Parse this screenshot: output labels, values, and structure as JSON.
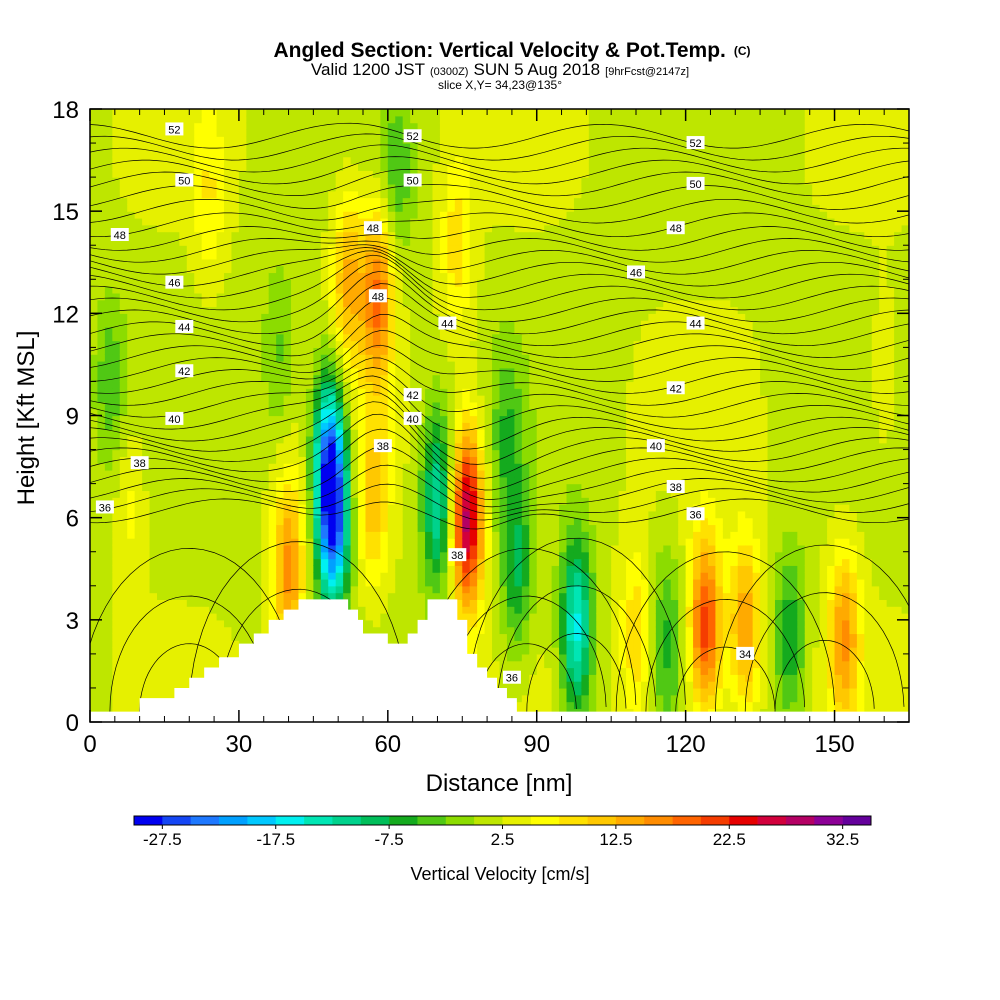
{
  "title": {
    "main": "Angled Section: Vertical Velocity & Pot.Temp.",
    "unit_tag": "(C)",
    "valid_a": "Valid 1200 JST",
    "valid_b": "(0300Z)",
    "valid_c": "SUN 5 Aug 2018",
    "valid_d": "[9hrFcst@2147z]",
    "slice": "slice X,Y= 34,23@135°"
  },
  "chart_data": {
    "type": "heatmap",
    "xlabel": "Distance [nm]",
    "ylabel": "Height [Kft MSL]",
    "xlim": [
      0,
      165
    ],
    "ylim": [
      0,
      18
    ],
    "x_ticks": [
      0,
      30,
      60,
      90,
      120,
      150
    ],
    "y_ticks": [
      0,
      3,
      6,
      9,
      12,
      15,
      18
    ],
    "x_tick_labels": [
      "0",
      "30",
      "60",
      "90",
      "120",
      "150"
    ],
    "y_tick_labels": [
      "0",
      "3",
      "6",
      "9",
      "12",
      "15",
      "18"
    ],
    "colorbar": {
      "label": "Vertical Velocity [cm/s]",
      "tick_labels": [
        "-27.5",
        "-17.5",
        "-7.5",
        "2.5",
        "12.5",
        "22.5",
        "32.5"
      ],
      "levels": [
        -30,
        -27.5,
        -25,
        -22.5,
        -20,
        -17.5,
        -15,
        -12.5,
        -10,
        -7.5,
        -5,
        -2.5,
        0,
        2.5,
        5,
        7.5,
        10,
        12.5,
        15,
        17.5,
        20,
        22.5,
        25,
        27.5,
        30,
        32.5,
        35
      ],
      "colors": [
        "#0000f0",
        "#1446f4",
        "#1e78ff",
        "#00a0ff",
        "#00c8ff",
        "#00f0f0",
        "#00e6b4",
        "#00d28c",
        "#00be5a",
        "#14aa1e",
        "#50c814",
        "#8cdc00",
        "#bee600",
        "#e6f000",
        "#ffff00",
        "#ffe100",
        "#ffc800",
        "#ffaa00",
        "#ff8c00",
        "#ff6400",
        "#f53c00",
        "#e60000",
        "#d2003c",
        "#b40064",
        "#8c0096",
        "#64009b"
      ]
    },
    "vertical_velocity_features": [
      {
        "x": 4,
        "z": 10.0,
        "w": -6
      },
      {
        "x": 8,
        "z": 6.5,
        "w": 4
      },
      {
        "x": 24,
        "z": 15.5,
        "w": 5
      },
      {
        "x": 38,
        "z": 11.0,
        "w": -5
      },
      {
        "x": 40,
        "z": 4.5,
        "w": 14
      },
      {
        "x": 49,
        "z": 6.0,
        "w": -27
      },
      {
        "x": 48,
        "z": 8.0,
        "w": -18
      },
      {
        "x": 52,
        "z": 13.0,
        "w": 11
      },
      {
        "x": 58,
        "z": 12.5,
        "w": 16
      },
      {
        "x": 57,
        "z": 6.5,
        "w": 9
      },
      {
        "x": 62,
        "z": 16.0,
        "w": -6
      },
      {
        "x": 70,
        "z": 6.5,
        "w": -15
      },
      {
        "x": 76,
        "z": 6.0,
        "w": 27
      },
      {
        "x": 74,
        "z": 14.0,
        "w": 7
      },
      {
        "x": 84,
        "z": 8.5,
        "w": -6
      },
      {
        "x": 86,
        "z": 4.5,
        "w": -10
      },
      {
        "x": 98,
        "z": 2.8,
        "w": -18
      },
      {
        "x": 110,
        "z": 2.5,
        "w": 8
      },
      {
        "x": 116,
        "z": 2.5,
        "w": -7
      },
      {
        "x": 124,
        "z": 2.8,
        "w": 20
      },
      {
        "x": 132,
        "z": 2.8,
        "w": 13
      },
      {
        "x": 141,
        "z": 2.5,
        "w": -9
      },
      {
        "x": 152,
        "z": 2.5,
        "w": 13
      },
      {
        "x": 160,
        "z": 10.0,
        "w": 3
      }
    ],
    "potential_temperature_contours": {
      "levels": [
        34,
        36,
        38,
        40,
        42,
        44,
        46,
        48,
        50,
        52
      ],
      "labels": [
        {
          "text": "52",
          "x": 17,
          "z": 17.4
        },
        {
          "text": "52",
          "x": 65,
          "z": 17.2
        },
        {
          "text": "52",
          "x": 122,
          "z": 17.0
        },
        {
          "text": "50",
          "x": 19,
          "z": 15.9
        },
        {
          "text": "50",
          "x": 65,
          "z": 15.9
        },
        {
          "text": "50",
          "x": 122,
          "z": 15.8
        },
        {
          "text": "48",
          "x": 6,
          "z": 14.3
        },
        {
          "text": "48",
          "x": 57,
          "z": 14.5
        },
        {
          "text": "48",
          "x": 118,
          "z": 14.5
        },
        {
          "text": "48",
          "x": 58,
          "z": 12.5
        },
        {
          "text": "46",
          "x": 17,
          "z": 12.9
        },
        {
          "text": "46",
          "x": 110,
          "z": 13.2
        },
        {
          "text": "44",
          "x": 19,
          "z": 11.6
        },
        {
          "text": "44",
          "x": 72,
          "z": 11.7
        },
        {
          "text": "44",
          "x": 122,
          "z": 11.7
        },
        {
          "text": "42",
          "x": 19,
          "z": 10.3
        },
        {
          "text": "42",
          "x": 65,
          "z": 9.6
        },
        {
          "text": "42",
          "x": 118,
          "z": 9.8
        },
        {
          "text": "40",
          "x": 17,
          "z": 8.9
        },
        {
          "text": "40",
          "x": 65,
          "z": 8.9
        },
        {
          "text": "40",
          "x": 114,
          "z": 8.1
        },
        {
          "text": "38",
          "x": 10,
          "z": 7.6
        },
        {
          "text": "38",
          "x": 59,
          "z": 8.1
        },
        {
          "text": "38",
          "x": 118,
          "z": 6.9
        },
        {
          "text": "38",
          "x": 74,
          "z": 4.9
        },
        {
          "text": "36",
          "x": 3,
          "z": 6.3
        },
        {
          "text": "36",
          "x": 122,
          "z": 6.1
        },
        {
          "text": "36",
          "x": 85,
          "z": 1.3
        },
        {
          "text": "34",
          "x": 132,
          "z": 2.0
        }
      ]
    },
    "terrain_profile": {
      "x": [
        0,
        10,
        17,
        20,
        23,
        26,
        30,
        33,
        36,
        39,
        42,
        45,
        48,
        50,
        52,
        54,
        55,
        56,
        58,
        60,
        62,
        64,
        66,
        68,
        70,
        72,
        74,
        76,
        78,
        80,
        82,
        84,
        86,
        165
      ],
      "z": [
        0.3,
        0.7,
        1.0,
        1.3,
        1.6,
        1.9,
        2.3,
        2.6,
        3.0,
        3.3,
        3.6,
        3.6,
        3.6,
        3.6,
        3.3,
        3.0,
        2.6,
        2.6,
        2.6,
        2.3,
        2.3,
        2.6,
        3.0,
        3.6,
        3.6,
        3.6,
        3.0,
        2.0,
        1.6,
        1.3,
        1.0,
        0.7,
        0.3,
        0.3
      ]
    }
  }
}
